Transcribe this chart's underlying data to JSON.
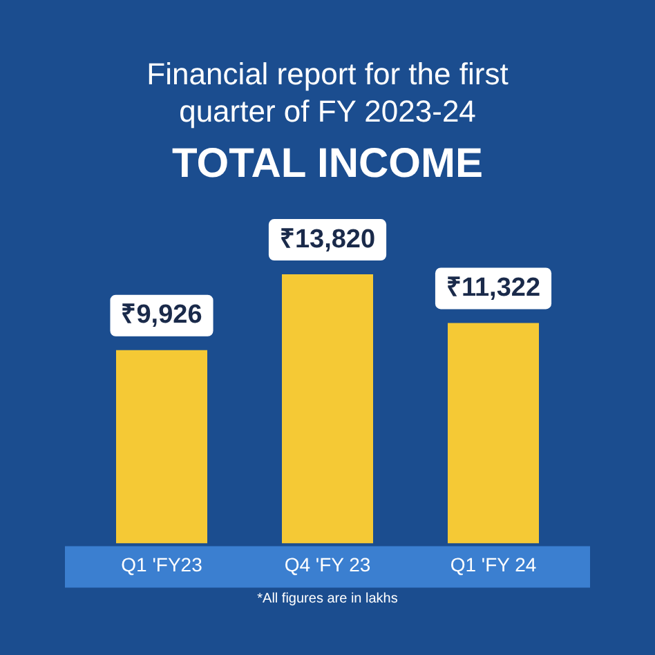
{
  "chart_data": {
    "type": "bar",
    "title": "Financial report for the first quarter of FY 2023-24",
    "subtitle": "TOTAL INCOME",
    "categories": [
      "Q1 'FY23",
      "Q4 'FY 23",
      "Q1 'FY 24"
    ],
    "values": [
      9926,
      13820,
      11322
    ],
    "value_labels": [
      "₹9,926",
      "₹13,820",
      "₹11,322"
    ],
    "color": "#f5c935",
    "annotations": [
      "*All figures are in lakhs"
    ],
    "grid": false,
    "legend": false
  }
}
